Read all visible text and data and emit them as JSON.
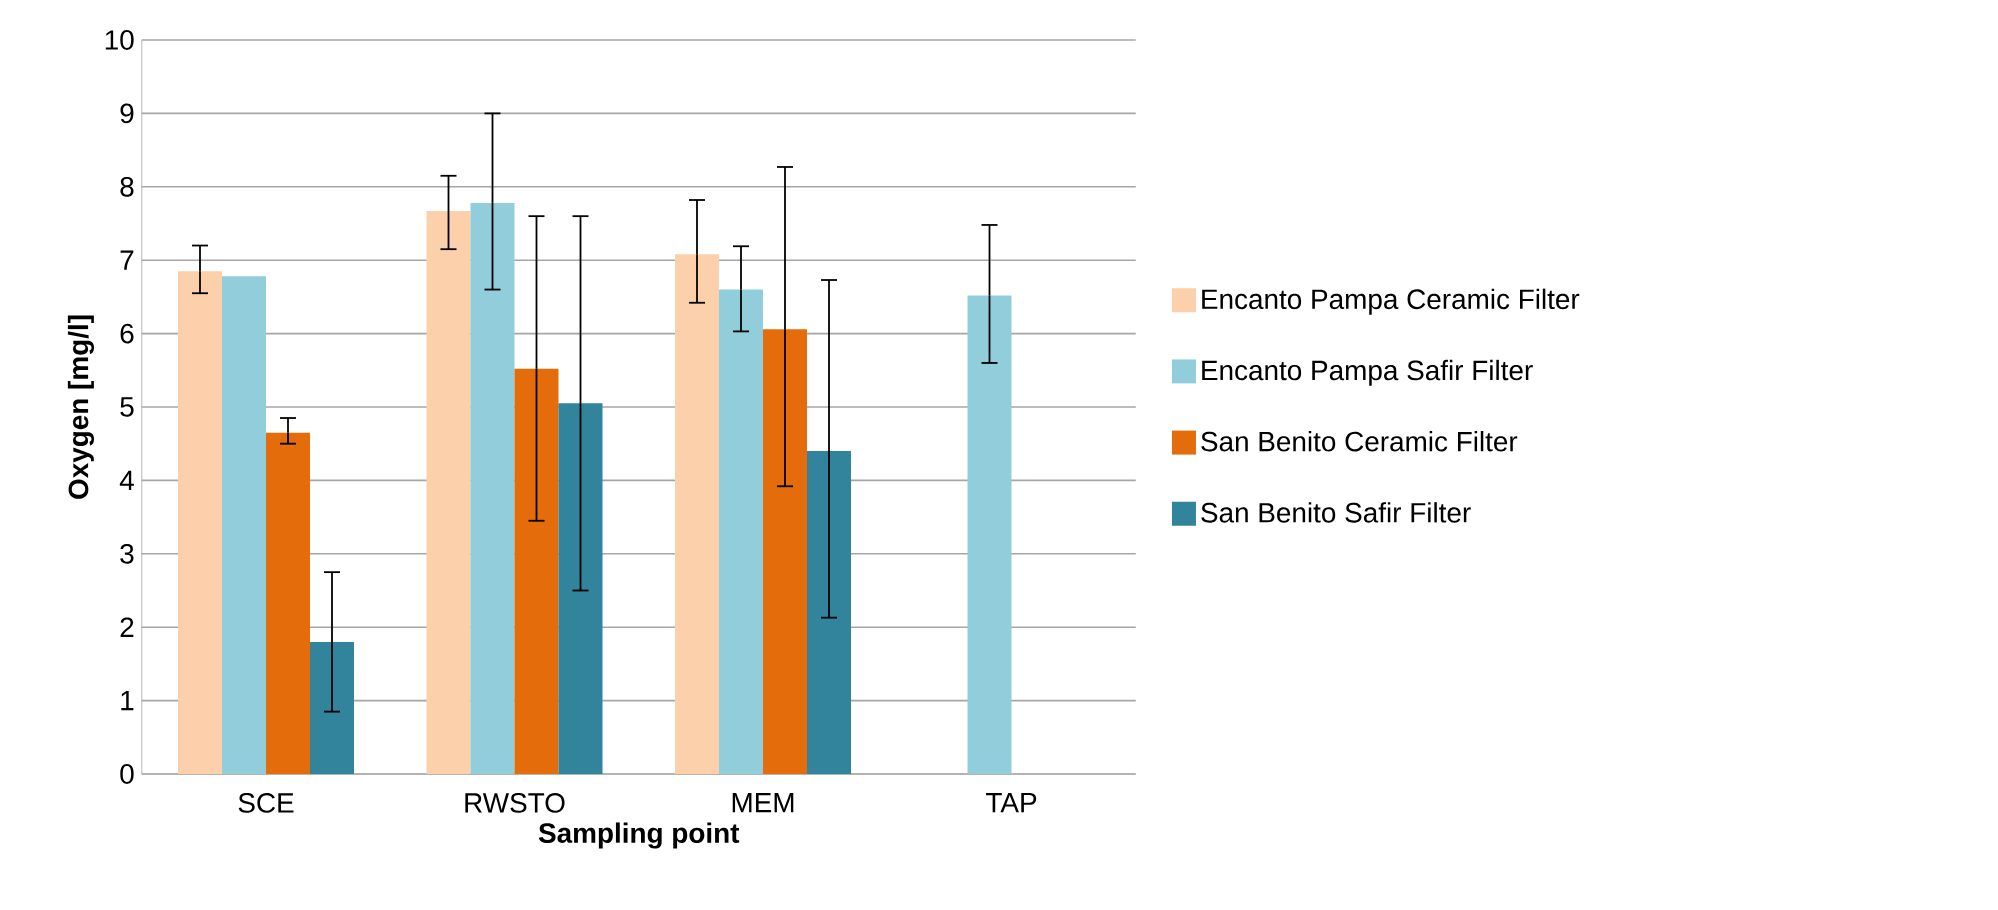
{
  "chart_data": {
    "type": "bar",
    "xlabel": "Sampling point",
    "ylabel": "Oxygen [mg/l]",
    "categories": [
      "SCE",
      "RWSTO",
      "MEM",
      "TAP"
    ],
    "series": [
      {
        "name": "Encanto Pampa Ceramic Filter",
        "color": "#fbd0ab",
        "values": [
          6.85,
          7.67,
          7.08,
          null
        ],
        "errors": [
          [
            6.55,
            7.2
          ],
          [
            7.15,
            8.15
          ],
          [
            6.42,
            7.82
          ],
          null
        ]
      },
      {
        "name": "Encanto Pampa Safir Filter",
        "color": "#92cddc",
        "values": [
          6.78,
          7.78,
          6.6,
          6.52
        ],
        "errors": [
          null,
          [
            6.6,
            9.0
          ],
          [
            6.03,
            7.19
          ],
          [
            5.6,
            7.48
          ]
        ]
      },
      {
        "name": "San Benito Ceramic Filter",
        "color": "#e46c0a",
        "values": [
          4.65,
          5.52,
          6.06,
          null
        ],
        "errors": [
          [
            4.5,
            4.85
          ],
          [
            3.45,
            7.6
          ],
          [
            3.92,
            8.27
          ],
          null
        ]
      },
      {
        "name": "San Benito Safir Filter",
        "color": "#31849b",
        "values": [
          1.8,
          5.05,
          4.4,
          null
        ],
        "errors": [
          [
            0.85,
            2.75
          ],
          [
            2.5,
            7.6
          ],
          [
            2.13,
            6.73
          ],
          null
        ]
      }
    ],
    "ylim": [
      0,
      10
    ],
    "yticks": [
      0,
      1,
      2,
      3,
      4,
      5,
      6,
      7,
      8,
      9,
      10
    ],
    "grid": "y",
    "legend": "right"
  }
}
